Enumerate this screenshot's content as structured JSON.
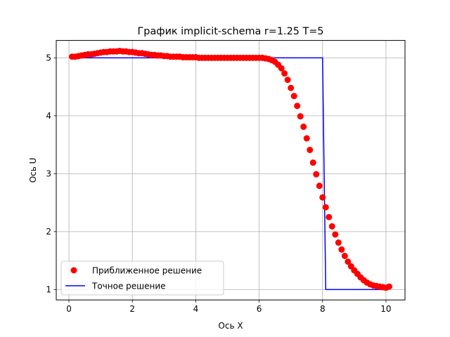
{
  "chart_data": {
    "type": "scatter",
    "title": "График implicit-schema r=1.25 T=5",
    "xlabel": "Ось X",
    "ylabel": "Ось U",
    "xlim": [
      -0.4,
      10.6
    ],
    "ylim": [
      0.82,
      5.3
    ],
    "xticks": [
      0,
      2,
      4,
      6,
      8,
      10
    ],
    "yticks": [
      1,
      2,
      3,
      4,
      5
    ],
    "grid": true,
    "legend_position": "lower left",
    "colors": {
      "approx": "#ff0000",
      "exact": "#0000ff",
      "grid": "#b0b0b0"
    },
    "series": [
      {
        "name": "Приближенное решение",
        "kind": "scatter",
        "x": [
          0.1,
          0.2,
          0.3,
          0.4,
          0.5,
          0.6,
          0.7,
          0.8,
          0.9,
          1.0,
          1.1,
          1.2,
          1.3,
          1.4,
          1.5,
          1.6,
          1.7,
          1.8,
          1.9,
          2.0,
          2.1,
          2.2,
          2.3,
          2.4,
          2.5,
          2.6,
          2.7,
          2.8,
          2.9,
          3.0,
          3.1,
          3.2,
          3.3,
          3.4,
          3.5,
          3.6,
          3.7,
          3.8,
          3.9,
          4.0,
          4.1,
          4.2,
          4.3,
          4.4,
          4.5,
          4.6,
          4.7,
          4.8,
          4.9,
          5.0,
          5.1,
          5.2,
          5.3,
          5.4,
          5.5,
          5.6,
          5.7,
          5.8,
          5.9,
          6.0,
          6.1,
          6.2,
          6.3,
          6.4,
          6.5,
          6.6,
          6.7,
          6.8,
          6.9,
          7.0,
          7.1,
          7.2,
          7.3,
          7.4,
          7.5,
          7.6,
          7.7,
          7.8,
          7.9,
          8.0,
          8.1,
          8.2,
          8.3,
          8.4,
          8.5,
          8.6,
          8.7,
          8.8,
          8.9,
          9.0,
          9.1,
          9.2,
          9.3,
          9.4,
          9.5,
          9.6,
          9.7,
          9.8,
          9.9,
          10.0,
          10.1
        ],
        "y": [
          5.02,
          5.02,
          5.03,
          5.04,
          5.05,
          5.06,
          5.06,
          5.07,
          5.08,
          5.09,
          5.1,
          5.1,
          5.11,
          5.11,
          5.11,
          5.12,
          5.11,
          5.11,
          5.1,
          5.1,
          5.09,
          5.08,
          5.08,
          5.07,
          5.06,
          5.05,
          5.05,
          5.04,
          5.04,
          5.03,
          5.03,
          5.02,
          5.02,
          5.02,
          5.02,
          5.01,
          5.01,
          5.01,
          5.01,
          5.01,
          5.0,
          5.0,
          5.0,
          5.0,
          5.0,
          5.0,
          5.0,
          5.0,
          5.0,
          5.0,
          5.0,
          5.0,
          5.0,
          5.0,
          5.0,
          5.0,
          5.0,
          5.0,
          5.0,
          5.0,
          5.0,
          4.99,
          4.98,
          4.96,
          4.93,
          4.88,
          4.82,
          4.73,
          4.62,
          4.48,
          4.34,
          4.17,
          3.99,
          3.81,
          3.61,
          3.41,
          3.19,
          2.99,
          2.79,
          2.59,
          2.42,
          2.25,
          2.09,
          1.95,
          1.81,
          1.69,
          1.58,
          1.48,
          1.4,
          1.33,
          1.27,
          1.21,
          1.16,
          1.12,
          1.09,
          1.07,
          1.06,
          1.05,
          1.04,
          1.03,
          1.05
        ]
      },
      {
        "name": "Точное решение",
        "kind": "line",
        "x": [
          0.1,
          8.0,
          8.1,
          10.0
        ],
        "y": [
          5.0,
          5.0,
          1.0,
          1.0
        ]
      }
    ]
  }
}
